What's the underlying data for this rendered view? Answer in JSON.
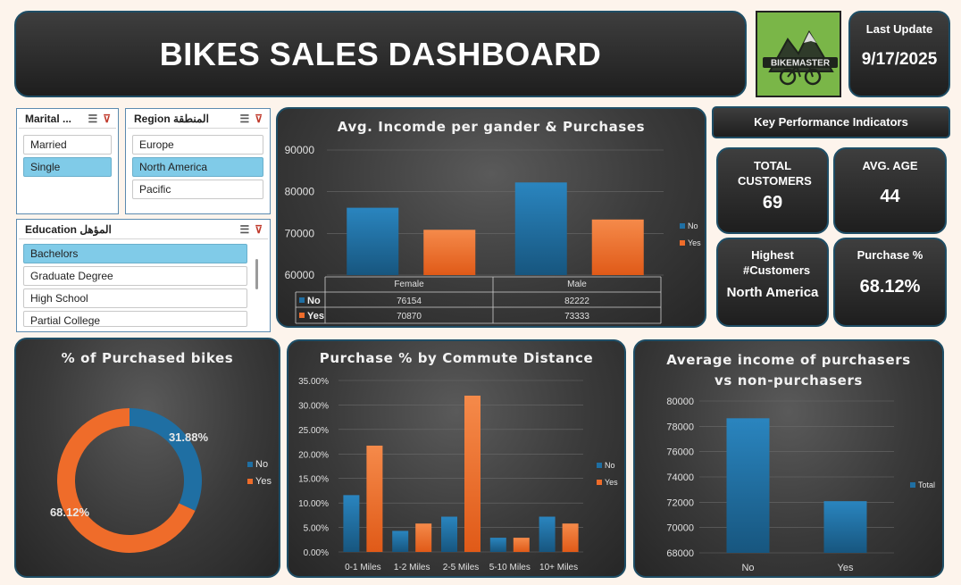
{
  "header": {
    "title": "BIKES SALES DASHBOARD",
    "logo_text": "BIKEMASTER",
    "last_update_label": "Last Update",
    "last_update_value": "9/17/2025"
  },
  "slicers": {
    "marital": {
      "title": "Marital ...",
      "items": [
        {
          "label": "Married",
          "selected": false
        },
        {
          "label": "Single",
          "selected": true
        }
      ]
    },
    "region": {
      "title": "Region المنطقة",
      "items": [
        {
          "label": "Europe",
          "selected": false
        },
        {
          "label": "North America",
          "selected": true
        },
        {
          "label": "Pacific",
          "selected": false
        }
      ]
    },
    "education": {
      "title": "Education المؤهل",
      "items": [
        {
          "label": "Bachelors",
          "selected": true
        },
        {
          "label": "Graduate Degree",
          "selected": false
        },
        {
          "label": "High School",
          "selected": false
        },
        {
          "label": "Partial College",
          "selected": false
        }
      ]
    }
  },
  "kpis": {
    "header": "Key Performance Indicators",
    "total_customers": {
      "label": "TOTAL CUSTOMERS",
      "value": "69"
    },
    "avg_age": {
      "label": "AVG. AGE",
      "value": "44"
    },
    "highest_customers": {
      "label": "Highest #Customers",
      "value": "North America"
    },
    "purchase_pct": {
      "label": "Purchase %",
      "value": "68.12%"
    }
  },
  "colors": {
    "no": "#1f6fa3",
    "yes": "#ef6c2a",
    "card_border": "#1f4e66"
  },
  "chart_data": [
    {
      "id": "income_gender",
      "type": "bar",
      "title": "Avg. Incomde per gander & Purchases",
      "categories": [
        "Female",
        "Male"
      ],
      "series": [
        {
          "name": "No",
          "values": [
            76154,
            82222
          ]
        },
        {
          "name": "Yes",
          "values": [
            70870,
            73333
          ]
        }
      ],
      "ylim": [
        60000,
        90000
      ],
      "yticks": [
        "90000",
        "80000",
        "70000",
        "60000"
      ],
      "data_table": true,
      "legend": "right"
    },
    {
      "id": "purchased_donut",
      "type": "pie",
      "title": "% of Purchased bikes",
      "labels": [
        "No",
        "Yes"
      ],
      "values": [
        31.88,
        68.12
      ],
      "value_labels": [
        "31.88%",
        "68.12%"
      ],
      "legend": "right"
    },
    {
      "id": "commute",
      "type": "bar",
      "title": "Purchase % by Commute Distance",
      "categories": [
        "0-1 Miles",
        "1-2 Miles",
        "2-5 Miles",
        "5-10 Miles",
        "10+ Miles"
      ],
      "series": [
        {
          "name": "No",
          "values": [
            11.6,
            4.3,
            7.2,
            2.9,
            7.2
          ]
        },
        {
          "name": "Yes",
          "values": [
            21.7,
            5.8,
            31.9,
            2.9,
            5.8
          ]
        }
      ],
      "ylim": [
        0,
        35
      ],
      "yticks": [
        "35.00%",
        "30.00%",
        "25.00%",
        "20.00%",
        "15.00%",
        "10.00%",
        "5.00%",
        "0.00%"
      ],
      "legend": "right"
    },
    {
      "id": "income_purchasers",
      "type": "bar",
      "title": "Average income of purchasers vs non-purchasers",
      "title_lines": [
        "Average income of purchasers",
        "vs non-purchasers"
      ],
      "categories": [
        "No",
        "Yes"
      ],
      "series": [
        {
          "name": "Total",
          "values": [
            78636,
            72083
          ]
        }
      ],
      "ylim": [
        68000,
        80000
      ],
      "yticks": [
        "80000",
        "78000",
        "76000",
        "74000",
        "72000",
        "70000",
        "68000"
      ],
      "legend": "right"
    }
  ]
}
